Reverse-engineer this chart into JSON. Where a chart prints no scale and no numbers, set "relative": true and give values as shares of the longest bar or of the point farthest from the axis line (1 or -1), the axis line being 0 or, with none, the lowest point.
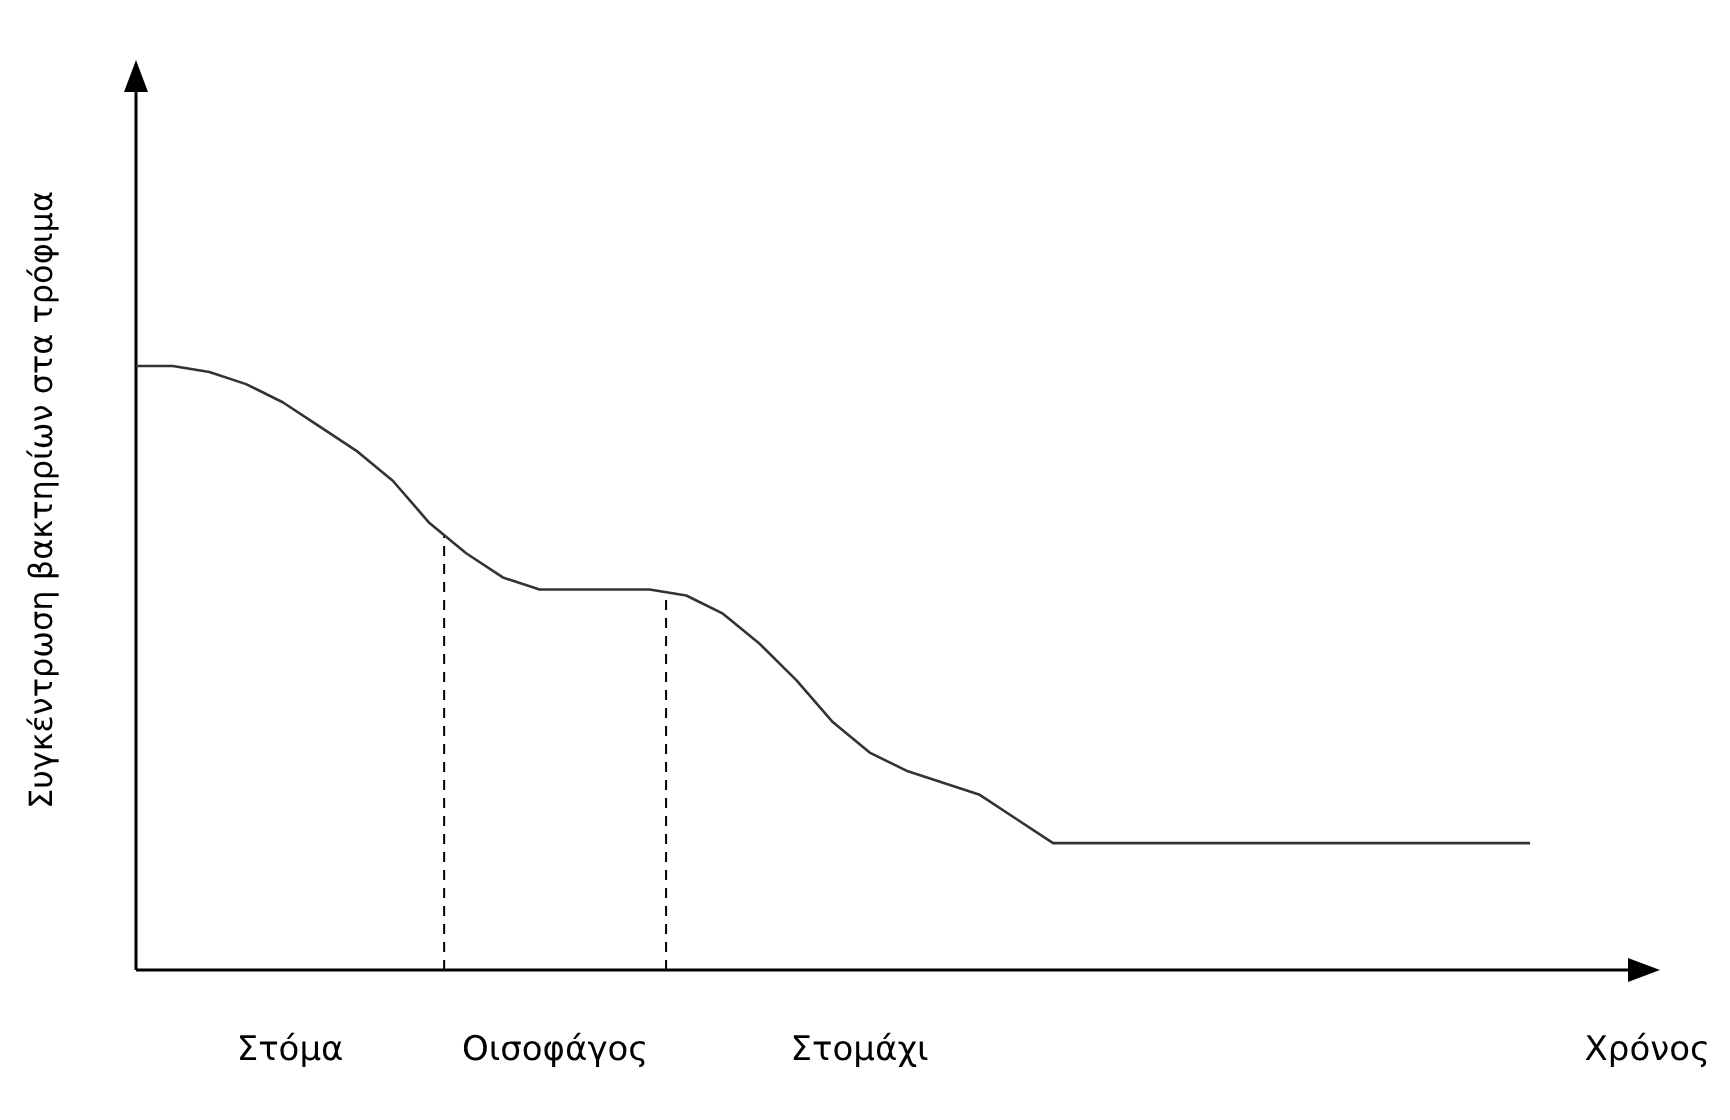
{
  "chart_data": {
    "type": "line",
    "relative": true,
    "xlabel": "Χρόνος",
    "ylabel": "Συγκέντρωση βακτηρίων στα τρόφιμα",
    "categories": [
      null,
      null,
      null,
      null,
      null,
      null,
      null,
      null,
      null,
      null,
      null,
      null,
      null,
      null,
      null,
      null,
      null,
      null,
      null,
      null,
      null,
      null,
      null,
      null,
      null,
      null,
      null,
      null,
      null,
      null,
      null,
      null,
      null,
      null,
      null,
      null,
      null,
      null,
      null
    ],
    "series": [
      {
        "color": "#333333",
        "values": [
          1.0,
          1.0,
          0.99,
          0.97,
          0.94,
          0.9,
          0.86,
          0.81,
          0.74,
          0.69,
          0.65,
          0.63,
          0.63,
          0.63,
          0.63,
          0.62,
          0.59,
          0.54,
          0.48,
          0.41,
          0.36,
          0.33,
          0.31,
          0.29,
          0.25,
          0.21,
          0.21,
          0.21,
          0.21,
          0.21,
          0.21,
          0.21,
          0.21,
          0.21,
          0.21,
          0.21,
          0.21,
          0.21,
          0.21
        ]
      }
    ],
    "annotations": [
      "Στόμα",
      "Οισοφάγος",
      "Στομάχι"
    ],
    "marker": "none",
    "line_style": "solid"
  }
}
